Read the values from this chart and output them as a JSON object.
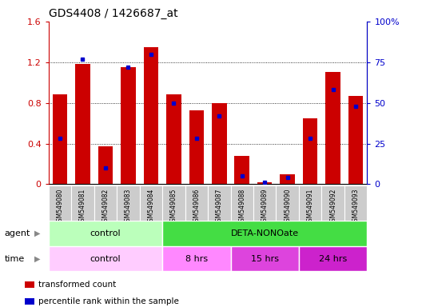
{
  "title": "GDS4408 / 1426687_at",
  "samples": [
    "GSM549080",
    "GSM549081",
    "GSM549082",
    "GSM549083",
    "GSM549084",
    "GSM549085",
    "GSM549086",
    "GSM549087",
    "GSM549088",
    "GSM549089",
    "GSM549090",
    "GSM549091",
    "GSM549092",
    "GSM549093"
  ],
  "transformed_count": [
    0.88,
    1.18,
    0.37,
    1.15,
    1.35,
    0.88,
    0.73,
    0.8,
    0.28,
    0.02,
    0.1,
    0.65,
    1.1,
    0.87
  ],
  "percentile_rank": [
    28,
    77,
    10,
    72,
    80,
    50,
    28,
    42,
    5,
    1,
    4,
    28,
    58,
    48
  ],
  "ylim_left": [
    0,
    1.6
  ],
  "ylim_right": [
    0,
    100
  ],
  "yticks_left": [
    0,
    0.4,
    0.8,
    1.2,
    1.6
  ],
  "yticks_right": [
    0,
    25,
    50,
    75,
    100
  ],
  "ytick_labels_left": [
    "0",
    "0.4",
    "0.8",
    "1.2",
    "1.6"
  ],
  "ytick_labels_right": [
    "0",
    "25",
    "50",
    "75",
    "100%"
  ],
  "bar_color": "#cc0000",
  "dot_color": "#0000cc",
  "agent_row": [
    {
      "label": "control",
      "start": 0,
      "end": 5,
      "color": "#bbffbb"
    },
    {
      "label": "DETA-NONOate",
      "start": 5,
      "end": 14,
      "color": "#44dd44"
    }
  ],
  "time_row": [
    {
      "label": "control",
      "start": 0,
      "end": 5,
      "color": "#ffccff"
    },
    {
      "label": "8 hrs",
      "start": 5,
      "end": 8,
      "color": "#ff88ff"
    },
    {
      "label": "15 hrs",
      "start": 8,
      "end": 11,
      "color": "#dd44dd"
    },
    {
      "label": "24 hrs",
      "start": 11,
      "end": 14,
      "color": "#cc22cc"
    }
  ],
  "legend_items": [
    {
      "label": "transformed count",
      "color": "#cc0000"
    },
    {
      "label": "percentile rank within the sample",
      "color": "#0000cc"
    }
  ],
  "tick_label_bg": "#cccccc",
  "title_fontsize": 10,
  "left_tick_color": "#cc0000",
  "right_tick_color": "#0000cc"
}
